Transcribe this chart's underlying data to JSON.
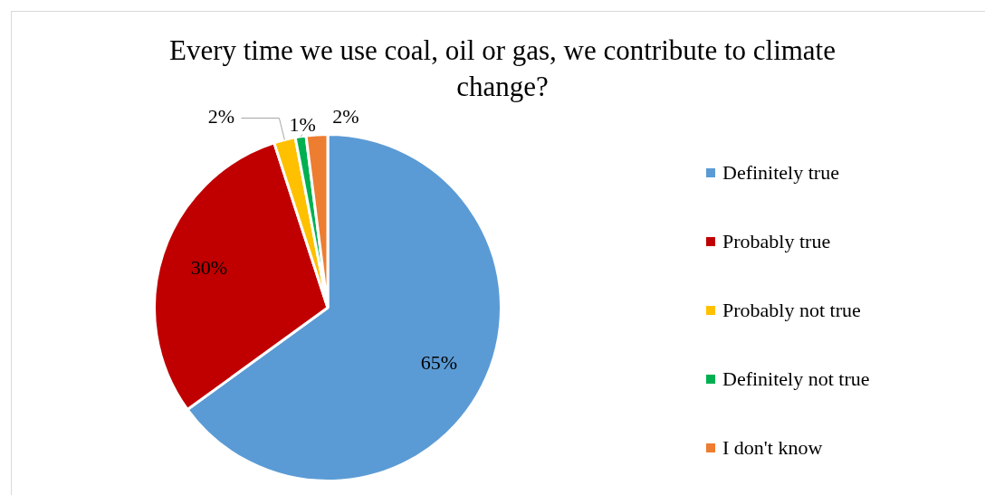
{
  "chart_data": {
    "type": "pie",
    "title": "Every time we use coal, oil or gas, we contribute to climate change?",
    "categories": [
      "Definitely true",
      "Probably true",
      "Probably not true",
      "Definitely not true",
      "I don't know"
    ],
    "values": [
      65,
      30,
      2,
      1,
      2
    ],
    "colors": [
      "#5b9bd5",
      "#c00000",
      "#ffc000",
      "#00b050",
      "#ed7d31"
    ],
    "value_labels": [
      "65%",
      "30%",
      "2%",
      "1%",
      "2%"
    ],
    "legend": "right"
  }
}
